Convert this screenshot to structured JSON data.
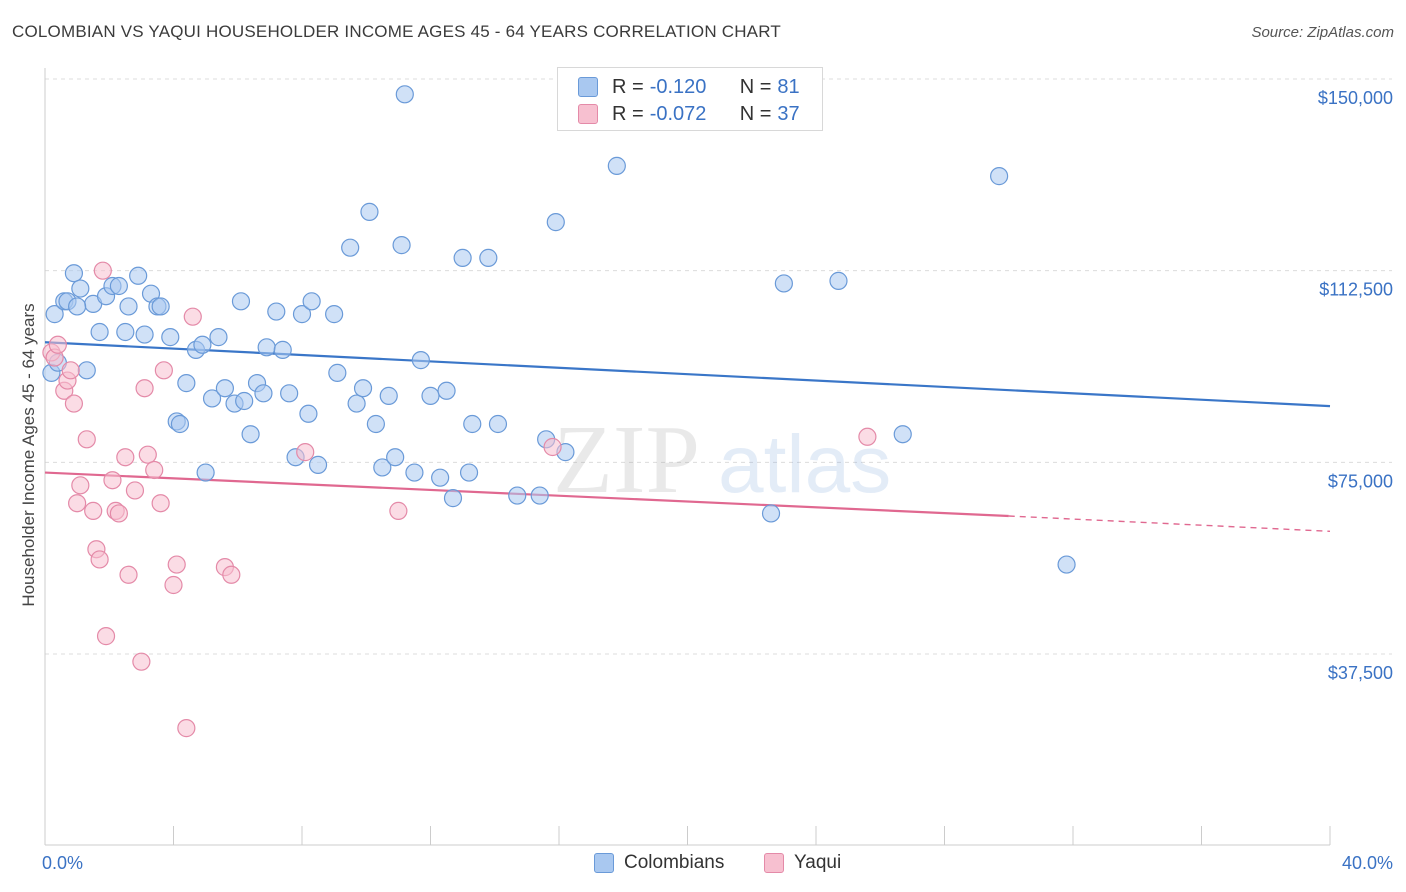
{
  "title": "COLOMBIAN VS YAQUI HOUSEHOLDER INCOME AGES 45 - 64 YEARS CORRELATION CHART",
  "source": "Source: ZipAtlas.com",
  "watermark": {
    "zip": "ZIP",
    "atlas": "atlas"
  },
  "legend": {
    "rows": [
      {
        "r_label": "R =",
        "r_value": "-0.120",
        "n_label": "N =",
        "n_value": "81",
        "color": "#a9c8f0",
        "stroke": "#6a9ad8"
      },
      {
        "r_label": "R =",
        "r_value": "-0.072",
        "n_label": "N =",
        "n_value": "37",
        "color": "#f7c0d0",
        "stroke": "#e48aa8"
      }
    ]
  },
  "bottom_legend": [
    {
      "label": "Colombians",
      "color": "#a9c8f0",
      "stroke": "#6a9ad8"
    },
    {
      "label": "Yaqui",
      "color": "#f7c0d0",
      "stroke": "#e48aa8"
    }
  ],
  "chart_data": {
    "type": "scatter",
    "title": "COLOMBIAN VS YAQUI HOUSEHOLDER INCOME AGES 45 - 64 YEARS CORRELATION CHART",
    "ylabel": "Householder Income Ages 45 - 64 years",
    "xlabel": "",
    "xlim": [
      0,
      40
    ],
    "ylim": [
      0,
      155000
    ],
    "x_tick_labels": [
      "0.0%",
      "40.0%"
    ],
    "y_ticks": [
      37500,
      75000,
      112500,
      150000
    ],
    "y_tick_labels": [
      "$37,500",
      "$75,000",
      "$112,500",
      "$150,000"
    ],
    "grid": true,
    "series": [
      {
        "name": "Colombians",
        "color": "#a9c8f0",
        "stroke": "#6a9ad8",
        "trend": {
          "x0": 0,
          "y0": 98500,
          "x1": 40,
          "y1": 86000,
          "color": "#3a76c8"
        },
        "points": [
          [
            0.3,
            104000
          ],
          [
            0.6,
            106500
          ],
          [
            0.9,
            112000
          ],
          [
            1.1,
            109000
          ],
          [
            1.3,
            93000
          ],
          [
            1.5,
            106000
          ],
          [
            1.7,
            100500
          ],
          [
            1.9,
            107500
          ],
          [
            2.1,
            109500
          ],
          [
            2.3,
            109500
          ],
          [
            2.5,
            100500
          ],
          [
            2.6,
            105500
          ],
          [
            2.9,
            111500
          ],
          [
            3.1,
            100000
          ],
          [
            3.3,
            108000
          ],
          [
            3.5,
            105500
          ],
          [
            3.6,
            105500
          ],
          [
            3.9,
            99500
          ],
          [
            4.1,
            83000
          ],
          [
            4.2,
            82500
          ],
          [
            4.4,
            90500
          ],
          [
            4.7,
            97000
          ],
          [
            4.9,
            98000
          ],
          [
            5.0,
            73000
          ],
          [
            5.2,
            87500
          ],
          [
            5.4,
            99500
          ],
          [
            5.6,
            89500
          ],
          [
            5.9,
            86500
          ],
          [
            6.1,
            106500
          ],
          [
            6.2,
            87000
          ],
          [
            6.4,
            80500
          ],
          [
            6.6,
            90500
          ],
          [
            6.8,
            88500
          ],
          [
            6.9,
            97500
          ],
          [
            7.2,
            104500
          ],
          [
            7.4,
            97000
          ],
          [
            7.6,
            88500
          ],
          [
            7.8,
            76000
          ],
          [
            8.0,
            104000
          ],
          [
            8.2,
            84500
          ],
          [
            8.3,
            106500
          ],
          [
            8.5,
            74500
          ],
          [
            9.0,
            104000
          ],
          [
            9.1,
            92500
          ],
          [
            9.5,
            117000
          ],
          [
            9.7,
            86500
          ],
          [
            9.9,
            89500
          ],
          [
            10.1,
            124000
          ],
          [
            10.3,
            82500
          ],
          [
            10.5,
            74000
          ],
          [
            10.7,
            88000
          ],
          [
            10.9,
            76000
          ],
          [
            11.1,
            117500
          ],
          [
            11.2,
            147000
          ],
          [
            11.5,
            73000
          ],
          [
            11.7,
            95000
          ],
          [
            12.0,
            88000
          ],
          [
            12.3,
            72000
          ],
          [
            12.5,
            89000
          ],
          [
            12.7,
            68000
          ],
          [
            13.0,
            115000
          ],
          [
            13.2,
            73000
          ],
          [
            13.3,
            82500
          ],
          [
            13.8,
            115000
          ],
          [
            14.1,
            82500
          ],
          [
            14.7,
            68500
          ],
          [
            15.4,
            68500
          ],
          [
            15.6,
            79500
          ],
          [
            15.9,
            122000
          ],
          [
            16.2,
            77000
          ],
          [
            17.8,
            133000
          ],
          [
            22.6,
            65000
          ],
          [
            23.0,
            110000
          ],
          [
            24.7,
            110500
          ],
          [
            26.7,
            80500
          ],
          [
            29.7,
            131000
          ],
          [
            31.8,
            55000
          ],
          [
            0.2,
            92500
          ],
          [
            0.4,
            94500
          ],
          [
            0.7,
            106500
          ],
          [
            1.0,
            105500
          ]
        ]
      },
      {
        "name": "Yaqui",
        "color": "#f7c0d0",
        "stroke": "#e48aa8",
        "trend": {
          "x0": 0,
          "y0": 73000,
          "x1": 30,
          "y1": 64500,
          "x2": 40,
          "y2": 61500,
          "color": "#e06890"
        },
        "points": [
          [
            0.2,
            96500
          ],
          [
            0.3,
            95500
          ],
          [
            0.4,
            98000
          ],
          [
            0.6,
            89000
          ],
          [
            0.7,
            91000
          ],
          [
            0.8,
            93000
          ],
          [
            0.9,
            86500
          ],
          [
            1.0,
            67000
          ],
          [
            1.1,
            70500
          ],
          [
            1.3,
            79500
          ],
          [
            1.5,
            65500
          ],
          [
            1.6,
            58000
          ],
          [
            1.7,
            56000
          ],
          [
            1.8,
            112500
          ],
          [
            1.9,
            41000
          ],
          [
            2.1,
            71500
          ],
          [
            2.2,
            65500
          ],
          [
            2.3,
            65000
          ],
          [
            2.5,
            76000
          ],
          [
            2.6,
            53000
          ],
          [
            2.8,
            69500
          ],
          [
            3.0,
            36000
          ],
          [
            3.1,
            89500
          ],
          [
            3.2,
            76500
          ],
          [
            3.4,
            73500
          ],
          [
            3.6,
            67000
          ],
          [
            3.7,
            93000
          ],
          [
            4.0,
            51000
          ],
          [
            4.1,
            55000
          ],
          [
            4.4,
            23000
          ],
          [
            4.6,
            103500
          ],
          [
            5.6,
            54500
          ],
          [
            5.8,
            53000
          ],
          [
            8.1,
            77000
          ],
          [
            11.0,
            65500
          ],
          [
            15.8,
            78000
          ],
          [
            25.6,
            80000
          ]
        ]
      }
    ]
  }
}
